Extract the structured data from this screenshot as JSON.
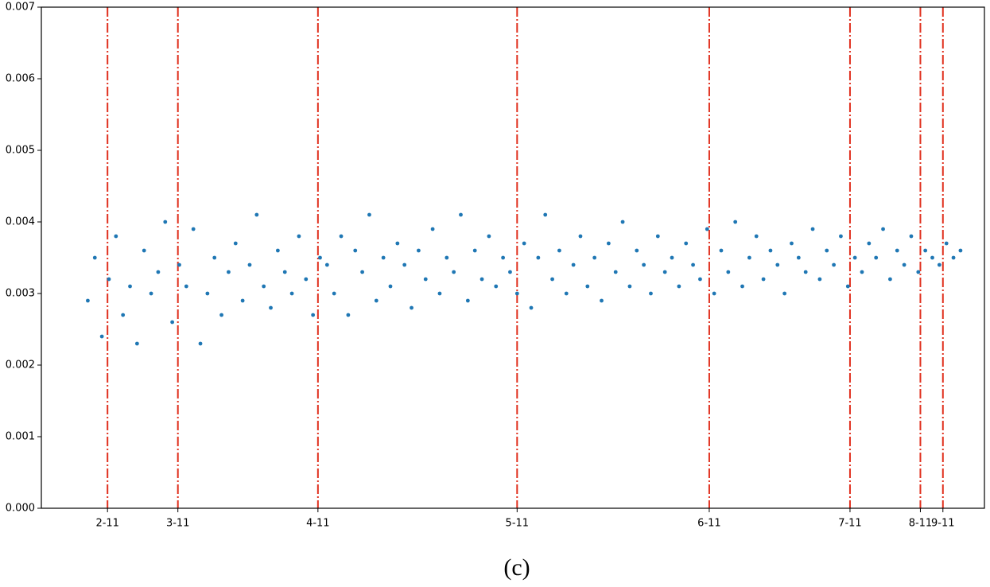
{
  "chart_data": {
    "type": "scatter",
    "caption": "(c)",
    "xlim": [
      0,
      1340
    ],
    "ylim": [
      0,
      0.007
    ],
    "xticks": [
      {
        "value": 94,
        "label": "2-11"
      },
      {
        "value": 194,
        "label": "3-11"
      },
      {
        "value": 393,
        "label": "4-11"
      },
      {
        "value": 676,
        "label": "5-11"
      },
      {
        "value": 949,
        "label": "6-11"
      },
      {
        "value": 1149,
        "label": "7-11"
      },
      {
        "value": 1249,
        "label": "8-11"
      },
      {
        "value": 1281,
        "label": "9-11"
      }
    ],
    "yticks": [
      {
        "value": 0,
        "label": "0.000"
      },
      0.001,
      0.002,
      0.003,
      0.004,
      0.005,
      0.006,
      0.007
    ],
    "vlines": true,
    "vline_color": "#e0301e",
    "grid": false,
    "color": "#1f77b4",
    "x": [
      66,
      76,
      86,
      96,
      106,
      116,
      126,
      136,
      146,
      156,
      166,
      176,
      186,
      196,
      206,
      216,
      226,
      236,
      246,
      256,
      266,
      276,
      286,
      296,
      306,
      316,
      326,
      336,
      346,
      356,
      366,
      376,
      386,
      396,
      406,
      416,
      426,
      436,
      446,
      456,
      466,
      476,
      486,
      496,
      506,
      516,
      526,
      536,
      546,
      556,
      566,
      576,
      586,
      596,
      606,
      616,
      626,
      636,
      646,
      656,
      666,
      676,
      686,
      696,
      706,
      716,
      726,
      736,
      746,
      756,
      766,
      776,
      786,
      796,
      806,
      816,
      826,
      836,
      846,
      856,
      866,
      876,
      886,
      896,
      906,
      916,
      926,
      936,
      946,
      956,
      966,
      976,
      986,
      996,
      1006,
      1016,
      1026,
      1036,
      1046,
      1056,
      1066,
      1076,
      1086,
      1096,
      1106,
      1116,
      1126,
      1136,
      1146,
      1156,
      1166,
      1176,
      1186,
      1196,
      1206,
      1216,
      1226,
      1236,
      1246,
      1256,
      1266,
      1276,
      1286,
      1296,
      1306
    ],
    "values": [
      0.0029,
      0.0035,
      0.0024,
      0.0032,
      0.0038,
      0.0027,
      0.0031,
      0.0023,
      0.0036,
      0.003,
      0.0033,
      0.004,
      0.0026,
      0.0034,
      0.0031,
      0.0039,
      0.0023,
      0.003,
      0.0035,
      0.0027,
      0.0033,
      0.0037,
      0.0029,
      0.0034,
      0.0041,
      0.0031,
      0.0028,
      0.0036,
      0.0033,
      0.003,
      0.0038,
      0.0032,
      0.0027,
      0.0035,
      0.0034,
      0.003,
      0.0038,
      0.0027,
      0.0036,
      0.0033,
      0.0041,
      0.0029,
      0.0035,
      0.0031,
      0.0037,
      0.0034,
      0.0028,
      0.0036,
      0.0032,
      0.0039,
      0.003,
      0.0035,
      0.0033,
      0.0041,
      0.0029,
      0.0036,
      0.0032,
      0.0038,
      0.0031,
      0.0035,
      0.0033,
      0.003,
      0.0037,
      0.0028,
      0.0035,
      0.0041,
      0.0032,
      0.0036,
      0.003,
      0.0034,
      0.0038,
      0.0031,
      0.0035,
      0.0029,
      0.0037,
      0.0033,
      0.004,
      0.0031,
      0.0036,
      0.0034,
      0.003,
      0.0038,
      0.0033,
      0.0035,
      0.0031,
      0.0037,
      0.0034,
      0.0032,
      0.0039,
      0.003,
      0.0036,
      0.0033,
      0.004,
      0.0031,
      0.0035,
      0.0038,
      0.0032,
      0.0036,
      0.0034,
      0.003,
      0.0037,
      0.0035,
      0.0033,
      0.0039,
      0.0032,
      0.0036,
      0.0034,
      0.0038,
      0.0031,
      0.0035,
      0.0033,
      0.0037,
      0.0035,
      0.0039,
      0.0032,
      0.0036,
      0.0034,
      0.0038,
      0.0033,
      0.0036,
      0.0035,
      0.0034,
      0.0037,
      0.0035,
      0.0036
    ]
  }
}
